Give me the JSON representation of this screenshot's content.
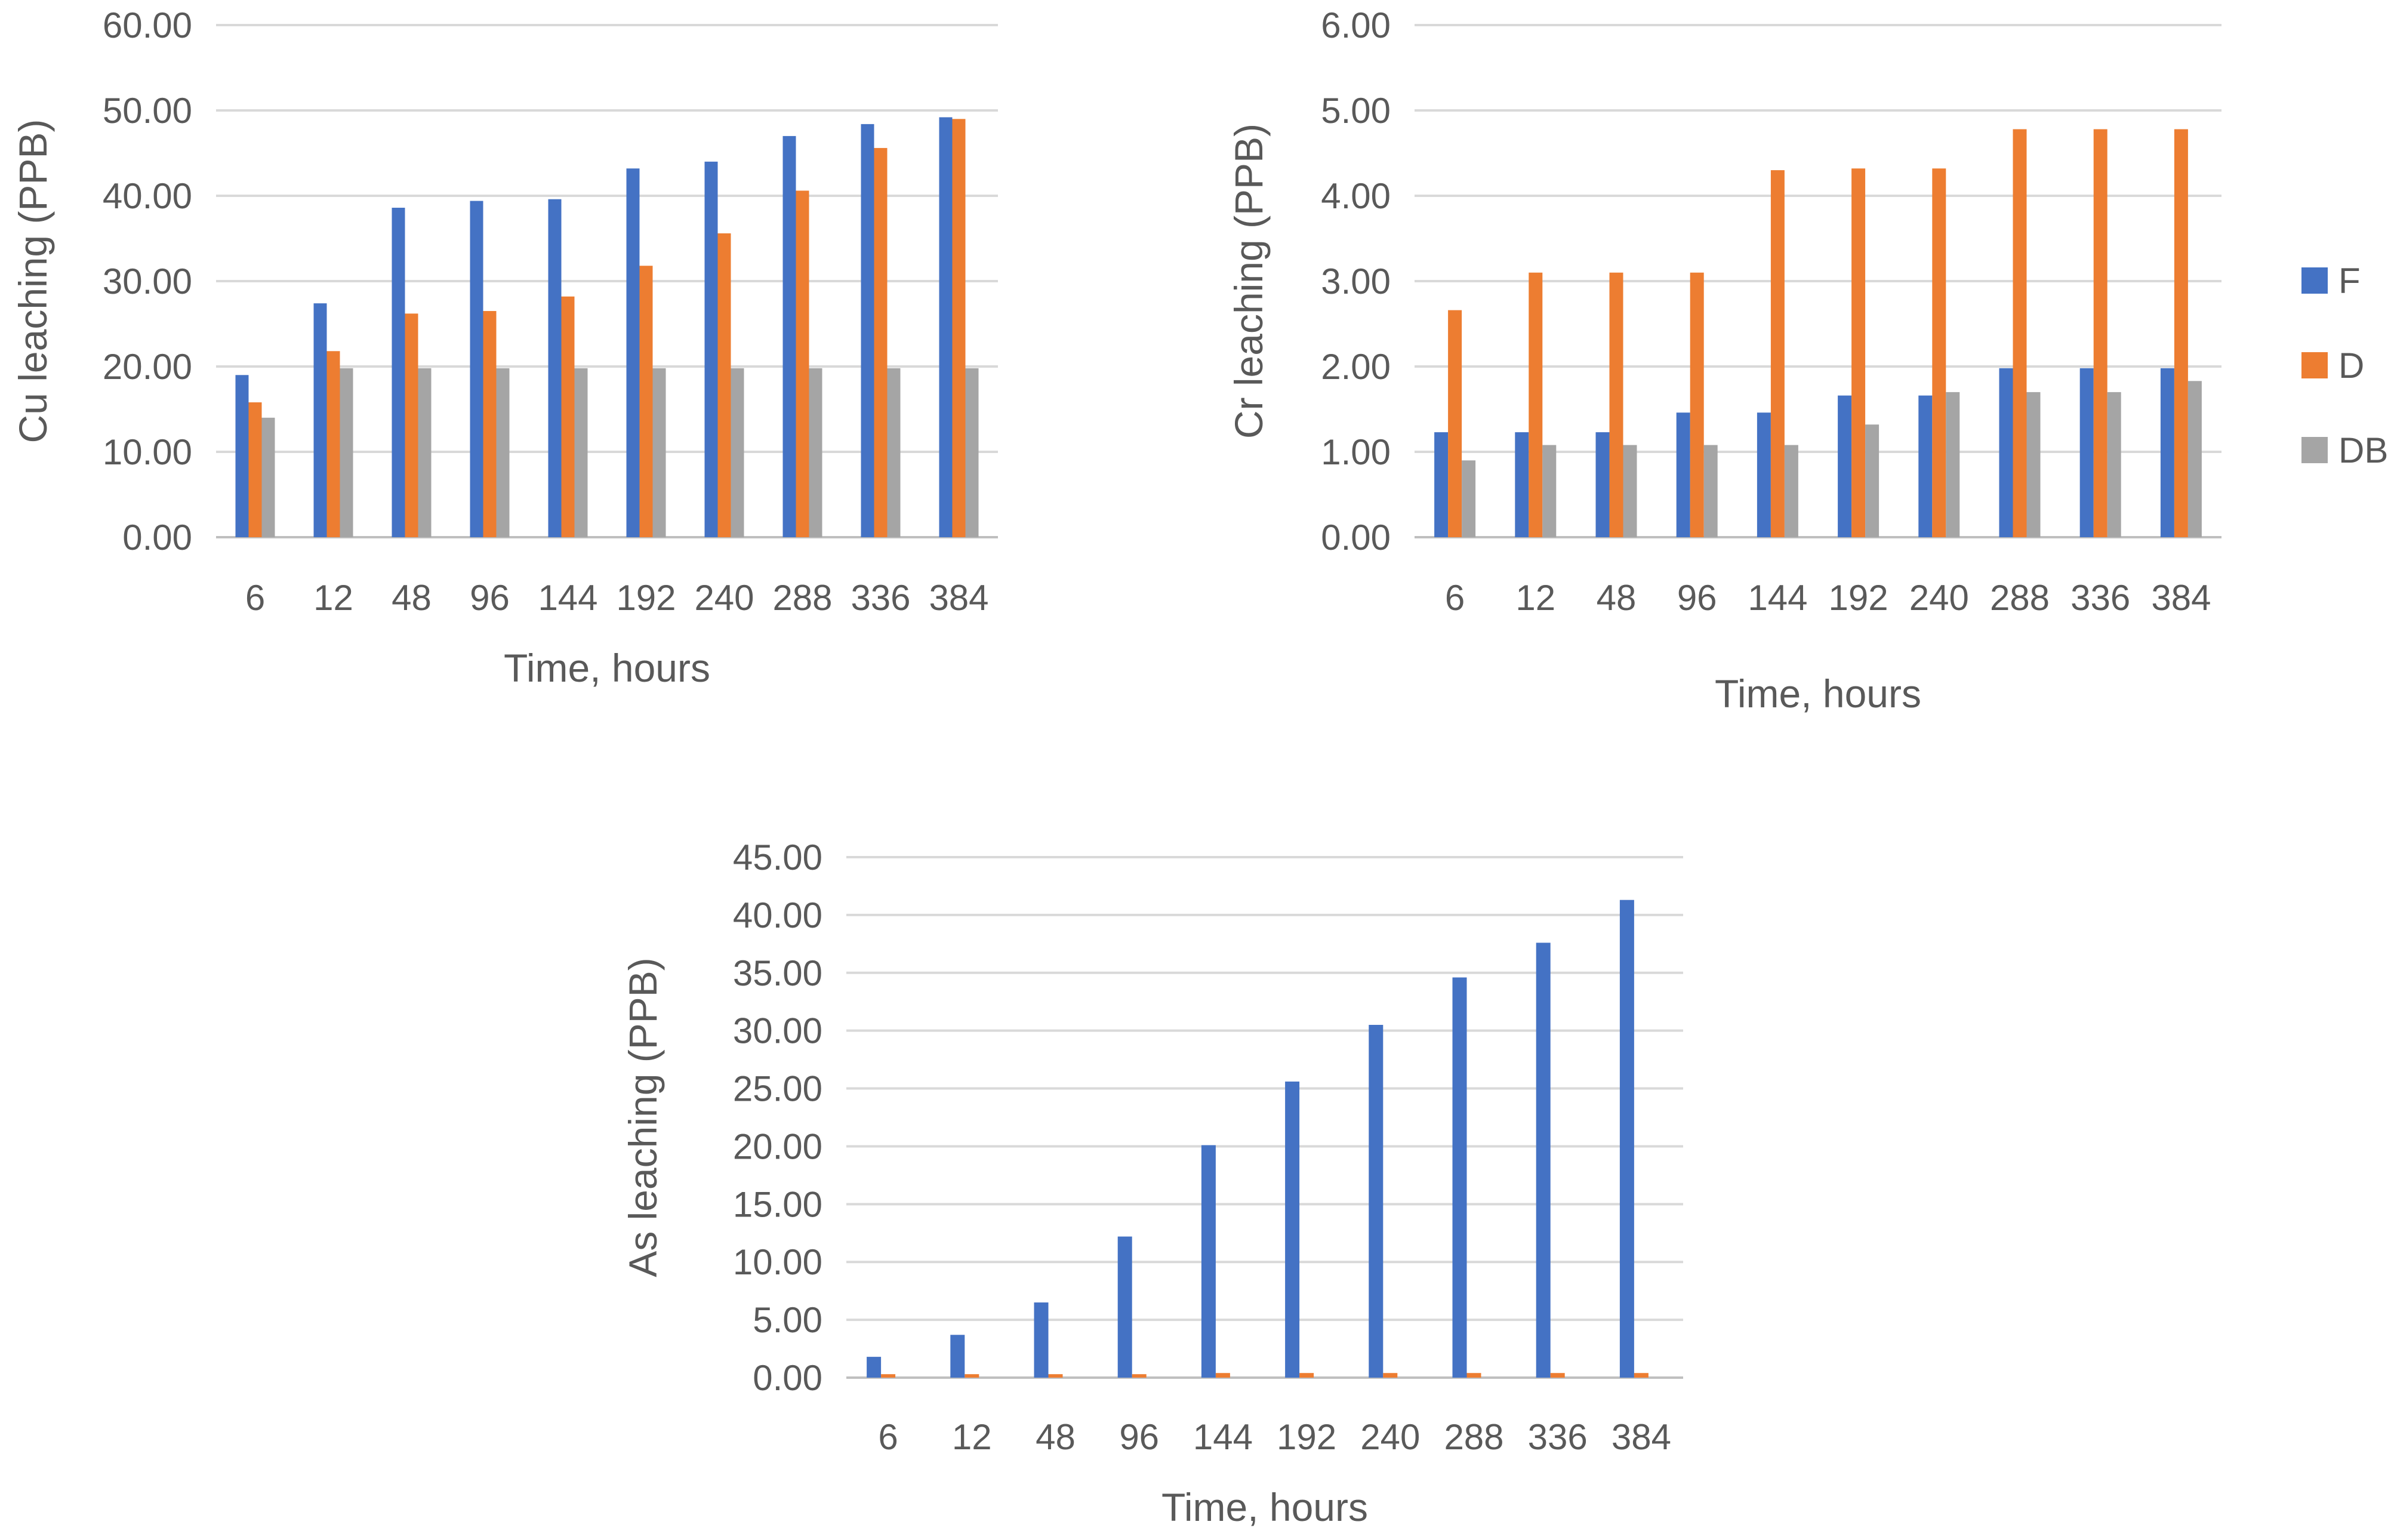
{
  "chart_data": [
    {
      "type": "bar",
      "title": "",
      "xlabel": "Time, hours",
      "ylabel": "Cu leaching (PPB)",
      "categories": [
        "6",
        "12",
        "48",
        "96",
        "144",
        "192",
        "240",
        "288",
        "336",
        "384"
      ],
      "ylim": [
        0,
        60
      ],
      "ytick_step": 10,
      "yticks": [
        "0.00",
        "10.00",
        "20.00",
        "30.00",
        "40.00",
        "50.00",
        "60.00"
      ],
      "series": [
        {
          "name": "F",
          "color": "#4472C4",
          "values": [
            19.0,
            27.4,
            38.6,
            39.4,
            39.6,
            43.2,
            44.0,
            47.0,
            48.4,
            49.2
          ]
        },
        {
          "name": "D",
          "color": "#ED7D31",
          "values": [
            15.8,
            21.8,
            26.2,
            26.5,
            28.2,
            31.8,
            35.6,
            40.6,
            45.6,
            49.0
          ]
        },
        {
          "name": "DB",
          "color": "#A5A5A5",
          "values": [
            14.0,
            19.8,
            19.8,
            19.8,
            19.8,
            19.8,
            19.8,
            19.8,
            19.8,
            19.8
          ]
        }
      ],
      "legend": "none"
    },
    {
      "type": "bar",
      "title": "",
      "xlabel": "Time, hours",
      "ylabel": "Cr leaching (PPB)",
      "categories": [
        "6",
        "12",
        "48",
        "96",
        "144",
        "192",
        "240",
        "288",
        "336",
        "384"
      ],
      "ylim": [
        0,
        6
      ],
      "ytick_step": 1,
      "yticks": [
        "0.00",
        "1.00",
        "2.00",
        "3.00",
        "4.00",
        "5.00",
        "6.00"
      ],
      "series": [
        {
          "name": "F",
          "color": "#4472C4",
          "values": [
            1.23,
            1.23,
            1.23,
            1.46,
            1.46,
            1.66,
            1.66,
            1.98,
            1.98,
            1.98
          ]
        },
        {
          "name": "D",
          "color": "#ED7D31",
          "values": [
            2.66,
            3.1,
            3.1,
            3.1,
            4.3,
            4.32,
            4.32,
            4.78,
            4.78,
            4.78
          ]
        },
        {
          "name": "DB",
          "color": "#A5A5A5",
          "values": [
            0.9,
            1.08,
            1.08,
            1.08,
            1.08,
            1.32,
            1.7,
            1.7,
            1.7,
            1.83
          ]
        }
      ],
      "legend": "right"
    },
    {
      "type": "bar",
      "title": "",
      "xlabel": "Time, hours",
      "ylabel": "As leaching (PPB)",
      "categories": [
        "6",
        "12",
        "48",
        "96",
        "144",
        "192",
        "240",
        "288",
        "336",
        "384"
      ],
      "ylim": [
        0,
        45
      ],
      "ytick_step": 5,
      "yticks": [
        "0.00",
        "5.00",
        "10.00",
        "15.00",
        "20.00",
        "25.00",
        "30.00",
        "35.00",
        "40.00",
        "45.00"
      ],
      "series": [
        {
          "name": "F",
          "color": "#4472C4",
          "values": [
            1.8,
            3.7,
            6.5,
            12.2,
            20.1,
            25.6,
            30.5,
            34.6,
            37.6,
            41.3
          ]
        },
        {
          "name": "D",
          "color": "#ED7D31",
          "values": [
            0.3,
            0.3,
            0.3,
            0.3,
            0.4,
            0.4,
            0.4,
            0.4,
            0.4,
            0.4
          ]
        },
        {
          "name": "DB",
          "color": "#A5A5A5",
          "values": [
            0,
            0,
            0,
            0,
            0,
            0,
            0,
            0,
            0,
            0
          ]
        }
      ],
      "legend": "none"
    }
  ],
  "legend": {
    "entries": [
      {
        "name": "F",
        "color": "#4472C4"
      },
      {
        "name": "D",
        "color": "#ED7D31"
      },
      {
        "name": "DB",
        "color": "#A5A5A5"
      }
    ]
  }
}
